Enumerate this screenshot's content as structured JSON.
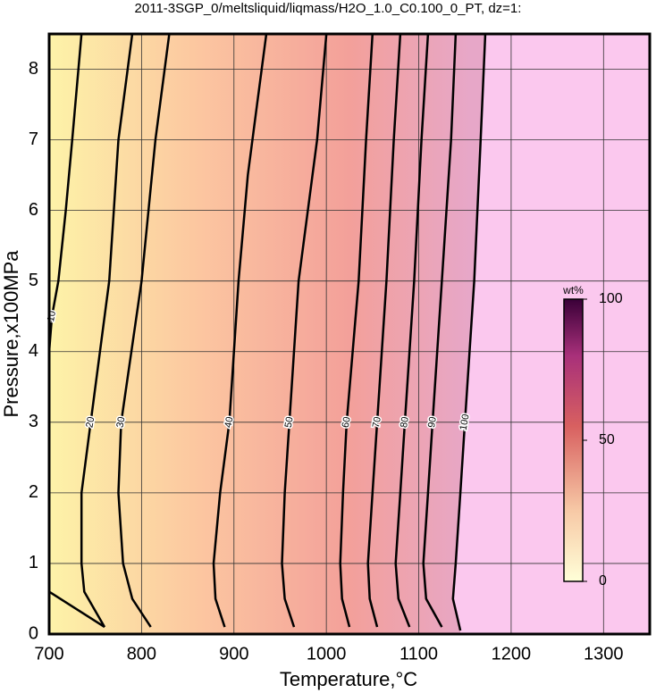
{
  "chart_data": {
    "type": "contour",
    "title": "2011-3SGP_0/meltsliquid/liqmass/H2O_1.0_C0.100_0_PT, dz=1:",
    "x_label": "Temperature,°C",
    "y_label": "Pressure,x100MPa",
    "xlim": [
      700,
      1350
    ],
    "ylim": [
      0,
      8.5
    ],
    "xticks": [
      700,
      800,
      900,
      1000,
      1100,
      1200,
      1300
    ],
    "yticks": [
      0,
      1,
      2,
      3,
      4,
      5,
      6,
      7,
      8
    ],
    "grid": true,
    "contours": [
      {
        "level": 10,
        "x": [
          700,
          760,
          null,
          700,
          703,
          710,
          718,
          725,
          735
        ],
        "y": [
          0.6,
          0.1,
          null,
          4,
          4.5,
          5,
          6,
          7,
          8.5
        ]
      },
      {
        "level": 20,
        "x": [
          760,
          738,
          735,
          735,
          745,
          765,
          775,
          790
        ],
        "y": [
          0.1,
          0.6,
          1,
          2,
          3,
          5,
          7,
          8.5
        ]
      },
      {
        "level": 30,
        "x": [
          810,
          790,
          780,
          775,
          778,
          800,
          815,
          830
        ],
        "y": [
          0.1,
          0.5,
          1,
          2,
          3,
          5,
          7,
          8.5
        ]
      },
      {
        "level": 40,
        "x": [
          890,
          880,
          878,
          885,
          895,
          905,
          915,
          925,
          935
        ],
        "y": [
          0.1,
          0.5,
          1,
          2,
          3,
          5,
          6.5,
          7.5,
          8.5
        ]
      },
      {
        "level": 50,
        "x": [
          965,
          955,
          952,
          955,
          960,
          970,
          990,
          1000
        ],
        "y": [
          0.1,
          0.5,
          1,
          2,
          3,
          5,
          7,
          8.5
        ]
      },
      {
        "level": 60,
        "x": [
          1025,
          1017,
          1015,
          1018,
          1022,
          1035,
          1043,
          1050
        ],
        "y": [
          0.1,
          0.5,
          1,
          2,
          3,
          5,
          7,
          8.5
        ]
      },
      {
        "level": 70,
        "x": [
          1055,
          1047,
          1045,
          1050,
          1055,
          1065,
          1073,
          1080
        ],
        "y": [
          0.1,
          0.5,
          1,
          2,
          3,
          5,
          7,
          8.5
        ]
      },
      {
        "level": 80,
        "x": [
          1090,
          1078,
          1075,
          1080,
          1085,
          1095,
          1103,
          1110
        ],
        "y": [
          0.1,
          0.5,
          1,
          2,
          3,
          5,
          7,
          8.5
        ]
      },
      {
        "level": 90,
        "x": [
          1125,
          1108,
          1105,
          1110,
          1115,
          1125,
          1135,
          1140
        ],
        "y": [
          0.1,
          0.5,
          1,
          2,
          3,
          5,
          7,
          8.5
        ]
      },
      {
        "level": 100,
        "x": [
          1145,
          1137,
          1140,
          1145,
          1150,
          1160,
          1167,
          1172
        ],
        "y": [
          0.05,
          0.5,
          1,
          2,
          3,
          5,
          7,
          8.5
        ]
      }
    ],
    "colorbar": {
      "label": "wt%",
      "lim": [
        0,
        100
      ],
      "ticks": [
        0,
        50,
        100
      ]
    }
  }
}
